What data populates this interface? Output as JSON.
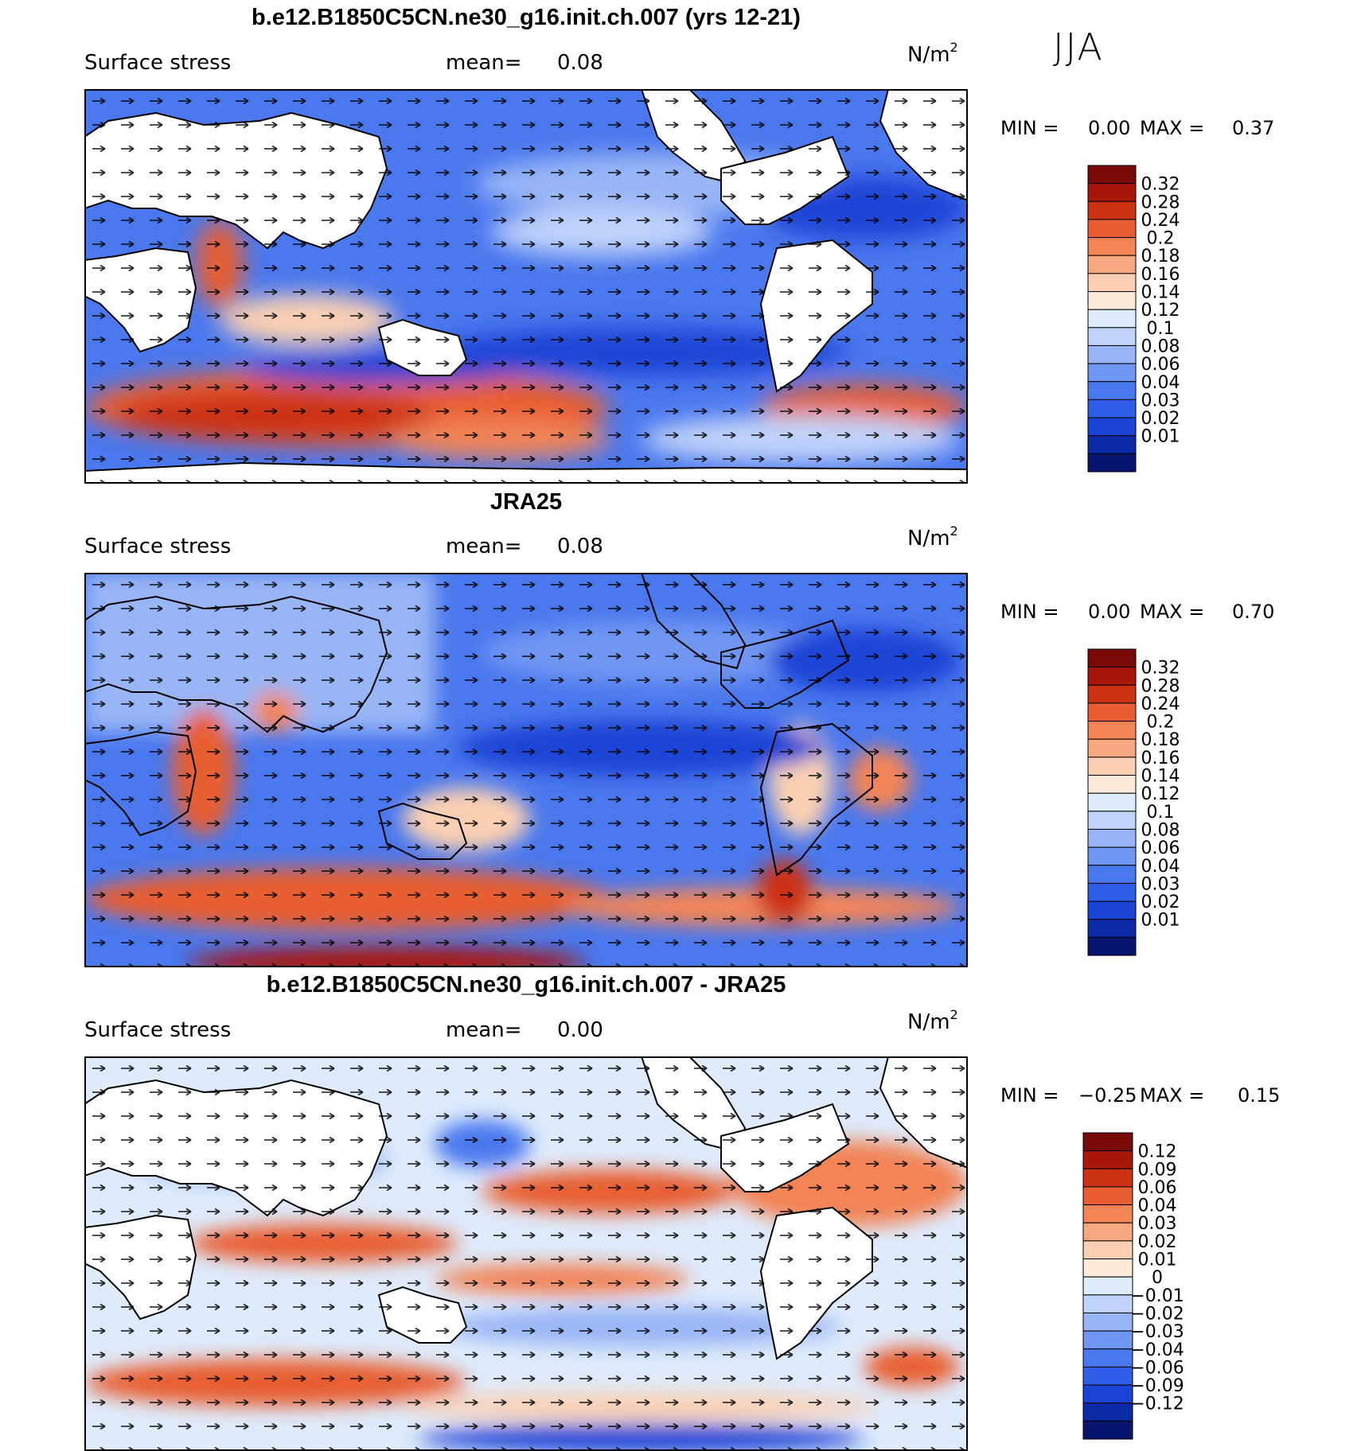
{
  "season": "JJA",
  "colors": {
    "levels_blue_to_red": [
      "#08156e",
      "#0a2aa6",
      "#1a44d6",
      "#2f5fe8",
      "#4a78ee",
      "#6f96f2",
      "#98b6f6",
      "#c0d3fa",
      "#deebfc",
      "#fdebd9",
      "#fbd0b2",
      "#f8a880",
      "#f28456",
      "#e85e30",
      "#cc3312",
      "#a8180a",
      "#7a0a06"
    ],
    "land": "#ffffff",
    "coast": "#000000"
  },
  "panels": [
    {
      "title": "b.e12.B1850C5CN.ne30_g16.init.ch.007 (yrs 12-21)",
      "variable": "Surface stress",
      "mean_label": "mean=",
      "mean_value": "0.08",
      "units_base": "N/m",
      "units_sup": "2",
      "min_label": "MIN =",
      "min_value": "0.00",
      "max_label": "MAX =",
      "max_value": "0.37",
      "colorbar_labels": [
        "0.32",
        "0.28",
        "0.24",
        "0.2",
        "0.18",
        "0.16",
        "0.14",
        "0.12",
        "0.1",
        "0.08",
        "0.06",
        "0.04",
        "0.03",
        "0.02",
        "0.01"
      ]
    },
    {
      "title": "JRA25",
      "variable": "Surface stress",
      "mean_label": "mean=",
      "mean_value": "0.08",
      "units_base": "N/m",
      "units_sup": "2",
      "min_label": "MIN =",
      "min_value": "0.00",
      "max_label": "MAX =",
      "max_value": "0.70",
      "colorbar_labels": [
        "0.32",
        "0.28",
        "0.24",
        "0.2",
        "0.18",
        "0.16",
        "0.14",
        "0.12",
        "0.1",
        "0.08",
        "0.06",
        "0.04",
        "0.03",
        "0.02",
        "0.01"
      ]
    },
    {
      "title": "b.e12.B1850C5CN.ne30_g16.init.ch.007 - JRA25",
      "variable": "Surface stress",
      "mean_label": "mean=",
      "mean_value": "0.00",
      "units_base": "N/m",
      "units_sup": "2",
      "min_label": "MIN =",
      "min_value": "−0.25",
      "max_label": "MAX =",
      "max_value": "0.15",
      "colorbar_labels": [
        "0.12",
        "0.09",
        "0.06",
        "0.04",
        "0.03",
        "0.02",
        "0.01",
        "0",
        "−0.01",
        "−0.02",
        "−0.03",
        "−0.04",
        "−0.06",
        "−0.09",
        "−0.12"
      ]
    }
  ]
}
